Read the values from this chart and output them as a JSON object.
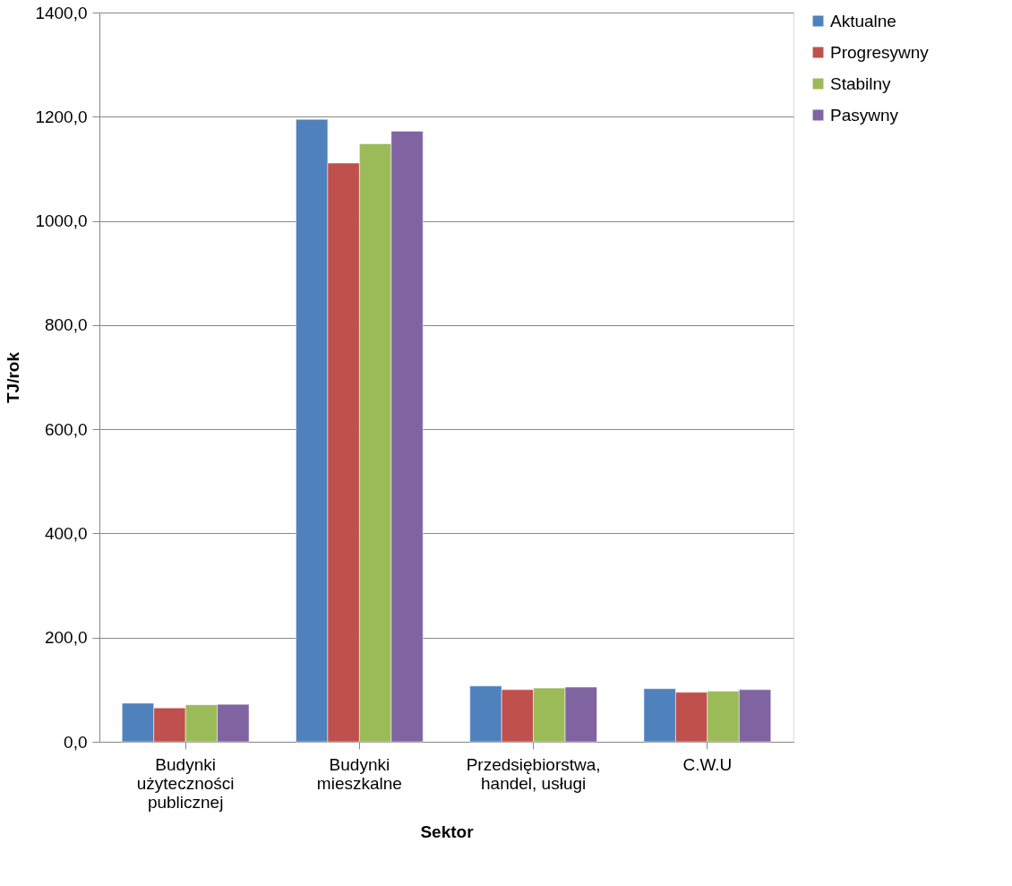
{
  "chart_data": {
    "type": "bar",
    "xlabel": "Sektor",
    "ylabel": "TJ/rok",
    "categories": [
      "Budynki użyteczności publicznej",
      "Budynki mieszkalne",
      "Przedsiębiorstwa, handel, usługi",
      "C.W.U"
    ],
    "series": [
      {
        "name": "Aktualne",
        "color": "#4f81bd",
        "values": [
          74,
          1195,
          107,
          102
        ]
      },
      {
        "name": "Progresywny",
        "color": "#c0504d",
        "values": [
          65,
          1111,
          100,
          95
        ]
      },
      {
        "name": "Stabilny",
        "color": "#9bbb59",
        "values": [
          71,
          1148,
          103,
          97
        ]
      },
      {
        "name": "Pasywny",
        "color": "#8064a2",
        "values": [
          72,
          1172,
          105,
          100
        ]
      }
    ],
    "ylim": [
      0,
      1400
    ],
    "yticks": [
      {
        "value": 0,
        "label": "0,0"
      },
      {
        "value": 200,
        "label": "200,0"
      },
      {
        "value": 400,
        "label": "400,0"
      },
      {
        "value": 600,
        "label": "600,0"
      },
      {
        "value": 800,
        "label": "800,0"
      },
      {
        "value": 1000,
        "label": "1000,0"
      },
      {
        "value": 1200,
        "label": "1200,0"
      },
      {
        "value": 1400,
        "label": "1400,0"
      }
    ],
    "grid": "y",
    "legend": "right"
  }
}
